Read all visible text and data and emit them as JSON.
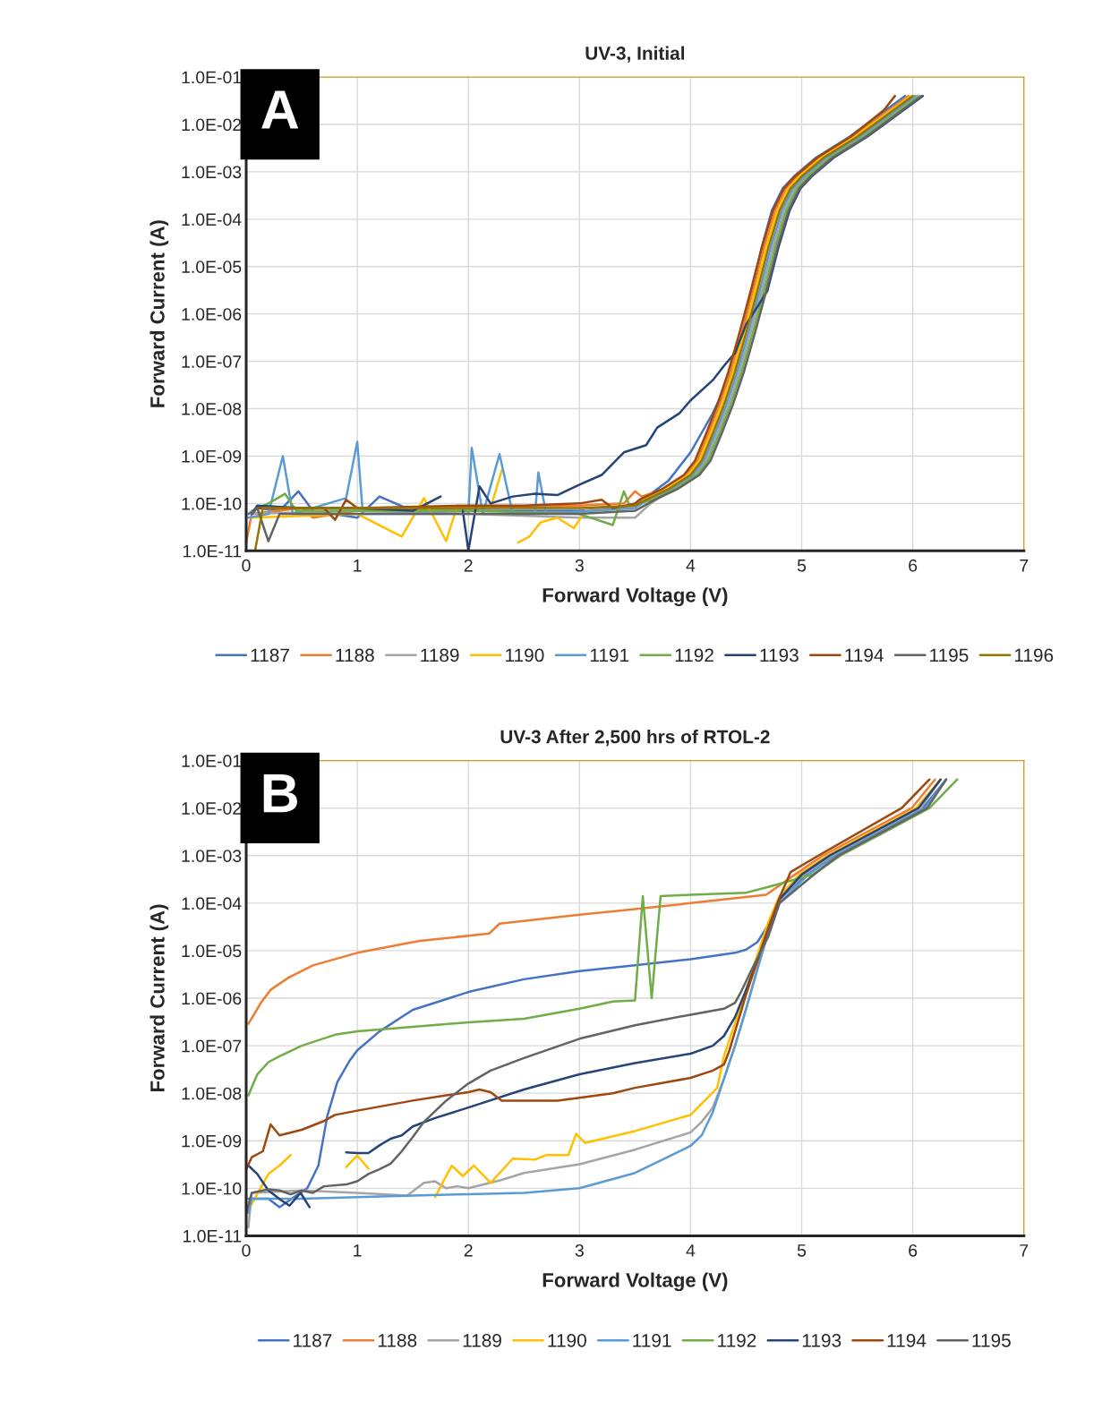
{
  "chart_data": [
    {
      "type": "line",
      "title": "UV-3, Initial",
      "xlabel": "Forward Voltage (V)",
      "ylabel": "Forward Current (A)",
      "annotations": [
        "A"
      ],
      "log": "y",
      "grid": true,
      "legend": "bottom",
      "xlim": [
        0,
        7
      ],
      "xticks": [
        0,
        1,
        2,
        3,
        4,
        5,
        6,
        7
      ],
      "ylim": [
        1e-11,
        0.1
      ],
      "yticks": [
        {
          "value": 1e-11,
          "label": "1.0E-11"
        },
        {
          "value": 1e-10,
          "label": "1.0E-10"
        },
        {
          "value": 1e-09,
          "label": "1.0E-09"
        },
        {
          "value": 1e-08,
          "label": "1.0E-08"
        },
        {
          "value": 1e-07,
          "label": "1.0E-07"
        },
        {
          "value": 1e-06,
          "label": "1.0E-06"
        },
        {
          "value": 1e-05,
          "label": "1.0E-05"
        },
        {
          "value": 0.0001,
          "label": "1.0E-04"
        },
        {
          "value": 0.001,
          "label": "1.0E-03"
        },
        {
          "value": 0.01,
          "label": "1.0E-02"
        },
        {
          "value": 0.1,
          "label": "1.0E-01"
        }
      ],
      "series": [
        {
          "name": "1187",
          "color": "#4472c4",
          "x": [
            0.02,
            0.1,
            0.3,
            0.47,
            0.6,
            1.0,
            1.2,
            1.5,
            2.0,
            2.5,
            3.0,
            3.5,
            3.8,
            4.0,
            4.2,
            4.4,
            4.47,
            4.55,
            4.64,
            4.73,
            4.83,
            4.93,
            5.13,
            5.43,
            5.73,
            5.93
          ],
          "values": [
            6e-11,
            8e-11,
            7e-11,
            1.8e-10,
            7e-11,
            5e-11,
            1.4e-10,
            7e-11,
            7e-11,
            7e-11,
            7e-11,
            9e-11,
            3e-10,
            1.2e-09,
            8e-09,
            8e-08,
            4e-07,
            3e-06,
            2.5e-05,
            0.00015,
            0.00045,
            0.0008,
            0.002,
            0.0055,
            0.018,
            0.04
          ]
        },
        {
          "name": "1188",
          "color": "#ed7d31",
          "x": [
            0.0,
            0.05,
            0.5,
            0.6,
            1.0,
            2.0,
            3.0,
            3.4,
            3.5,
            3.56,
            3.76,
            3.96,
            4.06,
            4.16,
            4.26,
            4.36,
            4.46,
            4.56,
            4.66,
            4.76,
            4.86,
            4.96,
            5.16,
            5.46,
            5.76,
            5.96
          ],
          "values": [
            1.5e-11,
            6e-11,
            8e-11,
            5e-11,
            7e-11,
            8e-11,
            9e-11,
            1e-10,
            1.8e-10,
            1.4e-10,
            2e-10,
            4e-10,
            8e-10,
            3e-09,
            1.2e-08,
            6e-08,
            4e-07,
            3e-06,
            2.5e-05,
            0.00015,
            0.00045,
            0.0008,
            0.002,
            0.0055,
            0.018,
            0.04
          ]
        },
        {
          "name": "1189",
          "color": "#a5a5a5",
          "x": [
            0.05,
            1.0,
            2.0,
            3.0,
            3.5,
            3.64,
            3.84,
            4.04,
            4.14,
            4.24,
            4.34,
            4.44,
            4.54,
            4.64,
            4.74,
            4.84,
            4.94,
            5.04,
            5.24,
            5.54,
            5.84,
            6.04
          ],
          "values": [
            6e-11,
            7e-11,
            6e-11,
            5e-11,
            5e-11,
            1e-10,
            2e-10,
            4e-10,
            8e-10,
            3e-09,
            1.2e-08,
            6e-08,
            4e-07,
            3e-06,
            2.5e-05,
            0.00015,
            0.00045,
            0.0008,
            0.002,
            0.0055,
            0.018,
            0.04
          ]
        },
        {
          "name": "1190",
          "color": "#ffc000",
          "x": [
            0.05,
            1.0,
            1.4,
            1.6,
            1.8,
            1.9,
            2.2,
            2.3,
            2.4,
            2.45,
            2.55,
            2.65,
            2.8,
            2.95,
            3.05,
            3.5,
            3.58,
            3.78,
            3.98,
            4.08,
            4.18,
            4.28,
            4.38,
            4.48,
            4.58,
            4.68,
            4.78,
            4.88,
            4.98,
            5.18,
            5.48,
            5.78,
            5.98
          ],
          "values": [
            5e-11,
            6e-11,
            2e-11,
            1.3e-10,
            1.6e-11,
            9e-11,
            8e-11,
            5e-10,
            null,
            1.5e-11,
            2e-11,
            4e-11,
            5e-11,
            3e-11,
            7e-11,
            8e-11,
            1.2e-10,
            2e-10,
            4e-10,
            8e-10,
            3e-09,
            1.2e-08,
            6e-08,
            4e-07,
            3e-06,
            2.5e-05,
            0.00015,
            0.00045,
            0.0008,
            0.002,
            0.0055,
            0.018,
            0.04
          ]
        },
        {
          "name": "1191",
          "color": "#5b9bd5",
          "x": [
            0.02,
            0.2,
            0.33,
            0.42,
            0.9,
            1.0,
            1.05,
            2.0,
            2.03,
            2.13,
            2.28,
            2.4,
            2.6,
            2.63,
            2.7,
            3.5,
            3.62,
            3.82,
            4.02,
            4.12,
            4.22,
            4.32,
            4.42,
            4.52,
            4.62,
            4.72,
            4.82,
            4.92,
            5.02,
            5.22,
            5.52,
            5.82,
            6.02
          ],
          "values": [
            5e-11,
            6e-11,
            1e-09,
            6e-11,
            1.3e-10,
            2e-09,
            6e-11,
            6e-11,
            1.5e-09,
            6e-11,
            1.1e-09,
            6e-11,
            6e-11,
            4.5e-10,
            6e-11,
            8e-11,
            1.2e-10,
            2e-10,
            4e-10,
            8e-10,
            3e-09,
            1.2e-08,
            6e-08,
            4e-07,
            3e-06,
            2.5e-05,
            0.00015,
            0.00045,
            0.0008,
            0.002,
            0.0055,
            0.018,
            0.04
          ]
        },
        {
          "name": "1192",
          "color": "#70ad47",
          "x": [
            0.05,
            0.2,
            0.35,
            0.45,
            1.0,
            2.0,
            3.0,
            3.3,
            3.4,
            3.45,
            3.66,
            3.86,
            4.06,
            4.16,
            4.26,
            4.36,
            4.46,
            4.56,
            4.66,
            4.76,
            4.86,
            4.96,
            5.06,
            5.26,
            5.56,
            5.86,
            6.06
          ],
          "values": [
            7e-11,
            1e-10,
            1.6e-10,
            7e-11,
            7e-11,
            7e-11,
            6e-11,
            3.5e-11,
            1.8e-10,
            9e-11,
            1.2e-10,
            2e-10,
            4e-10,
            8e-10,
            3e-09,
            1.2e-08,
            6e-08,
            4e-07,
            3e-06,
            2.5e-05,
            0.00015,
            0.00045,
            0.0008,
            0.002,
            0.0055,
            0.018,
            0.04
          ]
        },
        {
          "name": "1193",
          "color": "#264478",
          "x": [
            0.05,
            0.1,
            0.5,
            1.0,
            1.5,
            1.75,
            1.85,
            1.95,
            2.0,
            2.1,
            2.2,
            2.4,
            2.6,
            2.8,
            3.0,
            3.2,
            3.4,
            3.6,
            3.7,
            3.9,
            4.0,
            4.2,
            4.3,
            4.4,
            4.5,
            4.69,
            4.79,
            4.89,
            4.99,
            5.09,
            5.29,
            5.59,
            5.89,
            6.09
          ],
          "values": [
            6e-11,
            9e-11,
            8e-11,
            8e-11,
            7e-11,
            1.4e-10,
            null,
            7e-11,
            1e-11,
            2.3e-10,
            1e-10,
            1.4e-10,
            1.6e-10,
            1.5e-10,
            2.5e-10,
            4e-10,
            1.2e-09,
            1.7e-09,
            4e-09,
            8e-09,
            1.5e-08,
            4e-08,
            8e-08,
            1.5e-07,
            6e-07,
            3e-06,
            2.5e-05,
            0.00015,
            0.00045,
            0.0008,
            0.002,
            0.0055,
            0.018,
            0.04
          ]
        },
        {
          "name": "1194",
          "color": "#9e480e",
          "x": [
            0.05,
            0.1,
            0.7,
            0.8,
            0.9,
            1.0,
            2.0,
            2.5,
            3.0,
            3.2,
            3.3,
            3.5,
            3.54,
            3.74,
            3.94,
            4.04,
            4.14,
            4.24,
            4.34,
            4.44,
            4.54,
            4.64,
            4.74,
            4.84,
            4.94,
            5.14,
            5.44,
            5.74,
            5.84
          ],
          "values": [
            6e-11,
            8e-11,
            8e-11,
            4.5e-11,
            1.2e-10,
            8e-11,
            9e-11,
            9e-11,
            1e-10,
            1.2e-10,
            8e-11,
            1e-10,
            1.2e-10,
            2e-10,
            4e-10,
            8e-10,
            3e-09,
            1.2e-08,
            6e-08,
            4e-07,
            3e-06,
            2.5e-05,
            0.00015,
            0.00045,
            0.0008,
            0.002,
            0.0055,
            0.02,
            0.04
          ]
        },
        {
          "name": "1195",
          "color": "#636363",
          "x": [
            0.05,
            0.1,
            0.2,
            0.3,
            1.0,
            2.0,
            3.0,
            3.5,
            3.68,
            3.88,
            4.08,
            4.18,
            4.28,
            4.38,
            4.48,
            4.58,
            4.68,
            4.78,
            4.88,
            4.98,
            5.08,
            5.28,
            5.58,
            5.88,
            6.08
          ],
          "values": [
            6e-11,
            8e-11,
            1.6e-11,
            6e-11,
            6e-11,
            6e-11,
            6e-11,
            7e-11,
            1.2e-10,
            2e-10,
            4e-10,
            8e-10,
            3e-09,
            1.2e-08,
            6e-08,
            4e-07,
            3e-06,
            2.5e-05,
            0.00015,
            0.00045,
            0.0008,
            0.002,
            0.0055,
            0.018,
            0.04
          ]
        },
        {
          "name": "1196",
          "color": "#997300",
          "x": [
            0.08,
            0.15,
            1.0,
            2.0,
            3.0,
            3.5,
            3.6,
            3.8,
            4.0,
            4.1,
            4.2,
            4.3,
            4.4,
            4.5,
            4.6,
            4.7,
            4.8,
            4.9,
            5.0,
            5.2,
            5.5,
            5.8,
            6.0
          ],
          "values": [
            1e-11,
            8e-11,
            8e-11,
            8e-11,
            8e-11,
            9e-11,
            1.2e-10,
            2e-10,
            4e-10,
            8e-10,
            3e-09,
            1.2e-08,
            6e-08,
            4e-07,
            3e-06,
            2.5e-05,
            0.00015,
            0.00045,
            0.0008,
            0.002,
            0.0055,
            0.018,
            0.04
          ]
        }
      ]
    },
    {
      "type": "line",
      "title": "UV-3 After 2,500 hrs of RTOL-2",
      "xlabel": "Forward Voltage (V)",
      "ylabel": "Forward Current (A)",
      "annotations": [
        "B"
      ],
      "log": "y",
      "grid": true,
      "legend": "bottom",
      "xlim": [
        0,
        7
      ],
      "xticks": [
        0,
        1,
        2,
        3,
        4,
        5,
        6,
        7
      ],
      "ylim": [
        1e-11,
        0.1
      ],
      "yticks": [
        {
          "value": 1e-11,
          "label": "1.0E-11"
        },
        {
          "value": 1e-10,
          "label": "1.0E-10"
        },
        {
          "value": 1e-09,
          "label": "1.0E-09"
        },
        {
          "value": 1e-08,
          "label": "1.0E-08"
        },
        {
          "value": 1e-07,
          "label": "1.0E-07"
        },
        {
          "value": 1e-06,
          "label": "1.0E-06"
        },
        {
          "value": 1e-05,
          "label": "1.0E-05"
        },
        {
          "value": 0.0001,
          "label": "1.0E-04"
        },
        {
          "value": 0.001,
          "label": "1.0E-03"
        },
        {
          "value": 0.01,
          "label": "1.0E-02"
        },
        {
          "value": 0.1,
          "label": "1.0E-01"
        }
      ],
      "series": [
        {
          "name": "1187",
          "color": "#4472c4",
          "x": [
            0.02,
            0.2,
            0.3,
            0.45,
            0.55,
            0.65,
            0.73,
            0.82,
            0.93,
            1.0,
            1.2,
            1.5,
            2.0,
            2.5,
            3.0,
            3.5,
            4.0,
            4.4,
            4.5,
            4.6,
            4.7,
            4.8,
            5.04,
            5.29,
            6.09,
            6.3
          ],
          "values": [
            6e-11,
            6e-11,
            4e-11,
            7e-11,
            1e-10,
            3e-10,
            3.3e-09,
            1.7e-08,
            4.8e-08,
            8e-08,
            2e-07,
            5.7e-07,
            1.35e-06,
            2.5e-06,
            3.7e-06,
            4.9e-06,
            6.6e-06,
            9e-06,
            1.05e-05,
            1.5e-05,
            3.5e-05,
            0.00012,
            0.0004,
            0.001,
            0.01,
            0.04
          ]
        },
        {
          "name": "1188",
          "color": "#ed7d31",
          "x": [
            0.02,
            0.14,
            0.22,
            0.38,
            0.6,
            1.0,
            1.56,
            2.19,
            2.28,
            3.0,
            3.48,
            4.0,
            4.68,
            4.94,
            5.19,
            5.99,
            6.2
          ],
          "values": [
            2.9e-07,
            8.5e-07,
            1.5e-06,
            2.7e-06,
            4.9e-06,
            9e-06,
            1.6e-05,
            2.3e-05,
            3.7e-05,
            5.7e-05,
            7.4e-05,
            0.0001,
            0.00015,
            0.0004,
            0.001,
            0.01,
            0.04
          ]
        },
        {
          "name": "1189",
          "color": "#a5a5a5",
          "x": [
            0.02,
            0.05,
            0.5,
            1.0,
            1.45,
            1.6,
            1.7,
            1.8,
            1.9,
            2.0,
            2.3,
            2.5,
            3.0,
            3.5,
            4.0,
            4.1,
            4.2,
            4.3,
            4.4,
            4.5,
            4.6,
            4.7,
            4.8,
            5.02,
            5.27,
            6.07,
            6.25
          ],
          "values": [
            1.5e-11,
            8e-11,
            9e-11,
            8e-11,
            7e-11,
            1.3e-10,
            1.4e-10,
            1e-10,
            1.1e-10,
            1e-10,
            1.5e-10,
            2.1e-10,
            3.2e-10,
            6.5e-10,
            1.5e-09,
            2.5e-09,
            5e-09,
            2e-08,
            1e-07,
            6e-07,
            4e-06,
            2.5e-05,
            0.00012,
            0.0004,
            0.001,
            0.01,
            0.04
          ]
        },
        {
          "name": "1190",
          "color": "#ffc000",
          "x": [
            0.02,
            0.2,
            0.3,
            0.4,
            0.6,
            0.9,
            1.0,
            1.1,
            1.4,
            1.7,
            1.85,
            1.95,
            2.05,
            2.2,
            2.4,
            2.6,
            2.7,
            2.9,
            2.97,
            3.05,
            3.5,
            4.0,
            4.1,
            4.24,
            4.3,
            4.4,
            4.5,
            4.6,
            4.7,
            4.8,
            4.98,
            5.23,
            6.03,
            6.25
          ],
          "values": [
            3.5e-11,
            2e-10,
            3e-10,
            5e-10,
            null,
            2.8e-10,
            4.9e-10,
            2.6e-10,
            null,
            6.5e-11,
            3e-10,
            1.8e-10,
            3e-10,
            1.3e-10,
            4.2e-10,
            4e-10,
            5e-10,
            5e-10,
            1.4e-09,
            9e-10,
            1.6e-09,
            3.5e-09,
            6e-09,
            1.3e-08,
            6e-08,
            3e-07,
            1.5e-06,
            8e-06,
            4e-05,
            0.00014,
            0.0004,
            0.001,
            0.01,
            0.04
          ]
        },
        {
          "name": "1191",
          "color": "#5b9bd5",
          "x": [
            0.02,
            0.05,
            0.5,
            1.0,
            1.5,
            2.0,
            2.5,
            3.0,
            3.5,
            4.0,
            4.1,
            4.2,
            4.3,
            4.4,
            4.5,
            4.6,
            4.7,
            4.8,
            5.06,
            5.31,
            6.11,
            6.3
          ],
          "values": [
            3e-11,
            6e-11,
            6e-11,
            6.5e-11,
            7e-11,
            7.5e-11,
            8e-11,
            1e-10,
            2.1e-10,
            7.8e-10,
            1.3e-09,
            4e-09,
            2e-08,
            1e-07,
            6e-07,
            4e-06,
            2.5e-05,
            0.0001,
            0.0004,
            0.001,
            0.01,
            0.04
          ]
        },
        {
          "name": "1192",
          "color": "#70ad47",
          "x": [
            0.02,
            0.1,
            0.2,
            0.3,
            0.5,
            0.8,
            1.0,
            1.5,
            2.0,
            2.5,
            3.0,
            3.3,
            3.5,
            3.57,
            3.65,
            3.73,
            4.0,
            4.5,
            4.7,
            5.1,
            5.35,
            6.15,
            6.4
          ],
          "values": [
            9e-09,
            2.5e-08,
            4.5e-08,
            6e-08,
            1e-07,
            1.7e-07,
            2e-07,
            2.5e-07,
            3.1e-07,
            3.7e-07,
            6e-07,
            8.5e-07,
            9e-07,
            0.00014,
            1e-06,
            0.00014,
            0.00015,
            0.000166,
            0.00022,
            0.0004,
            0.001,
            0.01,
            0.04
          ]
        },
        {
          "name": "1193",
          "color": "#264478",
          "x": [
            0.02,
            0.1,
            0.2,
            0.31,
            0.39,
            0.49,
            0.57,
            0.7,
            0.9,
            1.0,
            1.1,
            1.2,
            1.3,
            1.4,
            1.5,
            1.7,
            2.0,
            2.5,
            3.0,
            3.5,
            4.0,
            4.2,
            4.3,
            4.4,
            4.5,
            4.6,
            4.7,
            4.8,
            5.0,
            5.25,
            6.05,
            6.25
          ],
          "values": [
            3e-10,
            2e-10,
            9e-11,
            5.7e-11,
            4.3e-11,
            8e-11,
            4e-11,
            null,
            5.7e-10,
            5.5e-10,
            5.5e-10,
            8e-10,
            1.1e-09,
            1.3e-09,
            2e-09,
            3e-09,
            5e-09,
            1.2e-08,
            2.5e-08,
            4.3e-08,
            6.8e-08,
            1e-07,
            1.6e-07,
            4e-07,
            1.5e-06,
            6e-06,
            3e-05,
            0.00012,
            0.0004,
            0.001,
            0.01,
            0.04
          ]
        },
        {
          "name": "1194",
          "color": "#9e480e",
          "x": [
            0.0,
            0.05,
            0.15,
            0.22,
            0.3,
            0.5,
            0.7,
            0.8,
            1.0,
            1.5,
            1.8,
            2.0,
            2.1,
            2.2,
            2.3,
            2.5,
            2.8,
            3.0,
            3.3,
            3.5,
            4.0,
            4.2,
            4.3,
            4.35,
            4.4,
            4.5,
            4.6,
            4.7,
            4.8,
            4.9,
            5.15,
            5.9,
            6.15
          ],
          "values": [
            2.5e-10,
            4.5e-10,
            6e-10,
            2.2e-09,
            1.3e-09,
            1.7e-09,
            2.6e-09,
            3.5e-09,
            4.3e-09,
            7e-09,
            9e-09,
            1.05e-08,
            1.2e-08,
            1.05e-08,
            7e-09,
            7e-09,
            7e-09,
            8e-09,
            1e-08,
            1.3e-08,
            2.1e-08,
            3e-08,
            4e-08,
            8e-08,
            2e-07,
            1.2e-06,
            6e-06,
            3e-05,
            0.00013,
            0.00045,
            0.001,
            0.01,
            0.04
          ]
        },
        {
          "name": "1195",
          "color": "#636363",
          "x": [
            0.0,
            0.05,
            0.2,
            0.3,
            0.4,
            0.5,
            0.6,
            0.7,
            0.9,
            1.0,
            1.1,
            1.2,
            1.3,
            1.4,
            1.5,
            1.6,
            1.8,
            2.0,
            2.2,
            2.5,
            3.0,
            3.5,
            4.0,
            4.3,
            4.4,
            4.45,
            4.55,
            4.7,
            4.8,
            5.08,
            5.33,
            6.13,
            6.3
          ],
          "values": [
            3e-11,
            8e-11,
            9.5e-11,
            9e-11,
            7.5e-11,
            9e-11,
            8e-11,
            1.1e-10,
            1.2e-10,
            1.4e-10,
            2e-10,
            2.5e-10,
            3.3e-10,
            6e-10,
            1.2e-09,
            2.5e-09,
            7e-09,
            1.6e-08,
            3e-08,
            5.5e-08,
            1.4e-07,
            2.7e-07,
            4.5e-07,
            6e-07,
            8e-07,
            1.3e-06,
            4e-06,
            2e-05,
            0.0001,
            0.00035,
            0.001,
            0.01,
            0.04
          ]
        }
      ]
    }
  ]
}
